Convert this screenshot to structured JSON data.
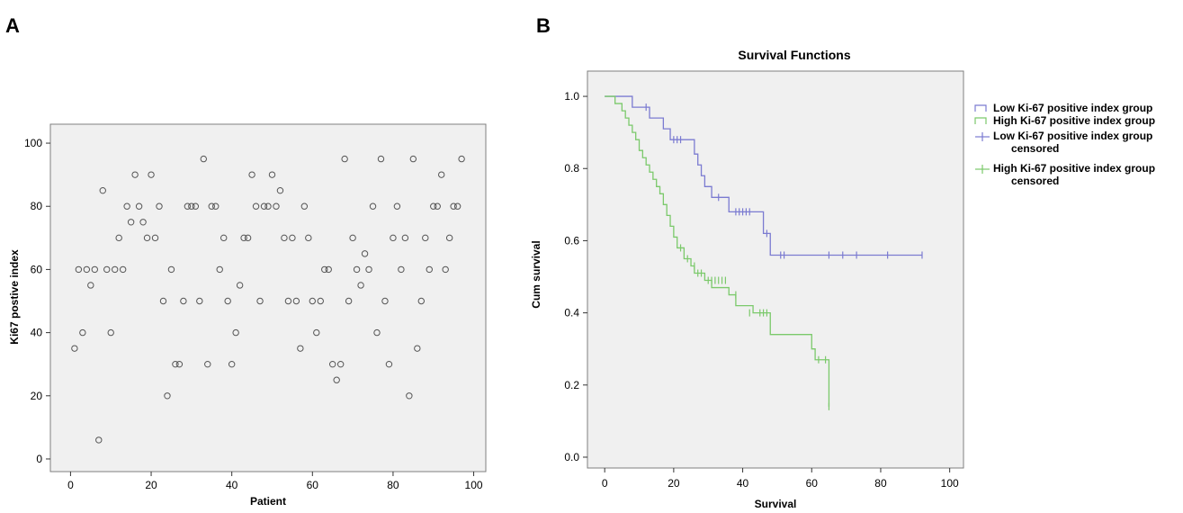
{
  "chart_data": [
    {
      "panel_label": "A",
      "type": "scatter",
      "title": "",
      "xlabel": "Patient",
      "ylabel": "Ki67 postive index",
      "xlim": [
        -5,
        103
      ],
      "ylim": [
        -4,
        106
      ],
      "xticks": [
        0,
        20,
        40,
        60,
        80,
        100
      ],
      "yticks": [
        0,
        20,
        40,
        60,
        80,
        100
      ],
      "background": "#f0f0f0",
      "marker_color": "#555555",
      "grid": false,
      "series": [
        {
          "x": [
            1,
            2,
            3,
            4,
            5,
            6,
            7,
            8,
            9,
            10,
            11,
            12,
            13,
            14,
            15,
            16,
            17,
            18,
            19,
            20,
            21,
            22,
            23,
            24,
            25,
            26,
            27,
            28,
            29,
            30,
            31,
            32,
            33,
            34,
            35,
            36,
            37,
            38,
            39,
            40,
            41,
            42,
            43,
            44,
            45,
            46,
            47,
            48,
            49,
            50,
            51,
            52,
            53,
            54,
            55,
            56,
            57,
            58,
            59,
            60,
            61,
            62,
            63,
            64,
            65,
            66,
            67,
            68,
            69,
            70,
            71,
            72,
            73,
            74,
            75,
            76,
            77,
            78,
            79,
            80,
            81,
            82,
            83,
            84,
            85,
            86,
            87,
            88,
            89,
            90,
            91,
            92,
            93,
            94,
            95,
            96,
            97
          ],
          "y": [
            35,
            60,
            40,
            60,
            55,
            60,
            6,
            85,
            60,
            40,
            60,
            70,
            60,
            80,
            75,
            90,
            80,
            75,
            70,
            90,
            70,
            80,
            50,
            20,
            60,
            30,
            30,
            50,
            80,
            80,
            80,
            50,
            95,
            30,
            80,
            80,
            60,
            70,
            50,
            30,
            40,
            55,
            70,
            70,
            90,
            80,
            50,
            80,
            80,
            90,
            80,
            85,
            70,
            50,
            70,
            50,
            35,
            80,
            70,
            50,
            40,
            50,
            60,
            60,
            30,
            25,
            30,
            95,
            50,
            70,
            60,
            55,
            65,
            60,
            80,
            40,
            95,
            50,
            30,
            70,
            80,
            60,
            70,
            20,
            95,
            35,
            50,
            70,
            60,
            80,
            80,
            90,
            60,
            70,
            80,
            80,
            95
          ]
        }
      ]
    },
    {
      "panel_label": "B",
      "type": "line",
      "title": "Survival Functions",
      "xlabel": "Survival",
      "ylabel": "Cum survival",
      "xlim": [
        -5,
        104
      ],
      "ylim": [
        -0.03,
        1.07
      ],
      "xticks": [
        0,
        20,
        40,
        60,
        80,
        100
      ],
      "yticks": [
        0.0,
        0.2,
        0.4,
        0.6,
        0.8,
        1.0
      ],
      "ytick_labels": [
        "0.0",
        "0.2",
        "0.4",
        "0.6",
        "0.8",
        "1.0"
      ],
      "background": "#f0f0f0",
      "grid": false,
      "legend_position": "right",
      "series": [
        {
          "name": "Low Ki-67 positive index group",
          "color": "#7b7bd1",
          "step_x": [
            0,
            8,
            13,
            17,
            19,
            26,
            27,
            28,
            29,
            31,
            36,
            46,
            48
          ],
          "step_y": [
            1.0,
            0.97,
            0.94,
            0.91,
            0.88,
            0.84,
            0.81,
            0.78,
            0.75,
            0.72,
            0.68,
            0.62,
            0.56
          ],
          "end_x": 92,
          "censored_x": [
            12,
            20,
            21,
            22,
            33,
            38,
            39,
            40,
            41,
            42,
            47,
            51,
            52,
            65,
            69,
            73,
            82,
            92
          ],
          "censored_y": [
            0.97,
            0.88,
            0.88,
            0.88,
            0.72,
            0.68,
            0.68,
            0.68,
            0.68,
            0.68,
            0.62,
            0.56,
            0.56,
            0.56,
            0.56,
            0.56,
            0.56,
            0.56
          ]
        },
        {
          "name": "High Ki-67 positive index group",
          "color": "#7bc96b",
          "step_x": [
            0,
            3,
            5,
            6,
            7,
            8,
            9,
            10,
            11,
            12,
            13,
            14,
            15,
            16,
            17,
            18,
            19,
            20,
            21,
            23,
            25,
            26,
            29,
            31,
            36,
            38,
            43,
            48,
            60,
            61,
            65
          ],
          "step_y": [
            1.0,
            0.98,
            0.96,
            0.94,
            0.92,
            0.9,
            0.88,
            0.85,
            0.83,
            0.81,
            0.79,
            0.77,
            0.75,
            0.73,
            0.7,
            0.67,
            0.64,
            0.61,
            0.58,
            0.55,
            0.53,
            0.51,
            0.49,
            0.47,
            0.45,
            0.42,
            0.4,
            0.34,
            0.3,
            0.27,
            0.14
          ],
          "end_x": 65,
          "censored_x": [
            22,
            24,
            26,
            27,
            28,
            30,
            31,
            32,
            33,
            34,
            35,
            38,
            42,
            45,
            46,
            47,
            62,
            64,
            65
          ],
          "censored_y": [
            0.58,
            0.55,
            0.53,
            0.51,
            0.51,
            0.49,
            0.49,
            0.49,
            0.49,
            0.49,
            0.49,
            0.45,
            0.4,
            0.4,
            0.4,
            0.4,
            0.27,
            0.27,
            0.14
          ]
        }
      ],
      "legend": [
        {
          "label": "Low Ki-67 positive index group",
          "color": "#7b7bd1",
          "kind": "line"
        },
        {
          "label": "High Ki-67 positive index group",
          "color": "#7bc96b",
          "kind": "line"
        },
        {
          "label": "Low Ki-67 positive index group",
          "label2": "censored",
          "color": "#7b7bd1",
          "kind": "censor"
        },
        {
          "label": "High Ki-67 positive index group",
          "label2": "censored",
          "color": "#7bc96b",
          "kind": "censor"
        }
      ]
    }
  ]
}
